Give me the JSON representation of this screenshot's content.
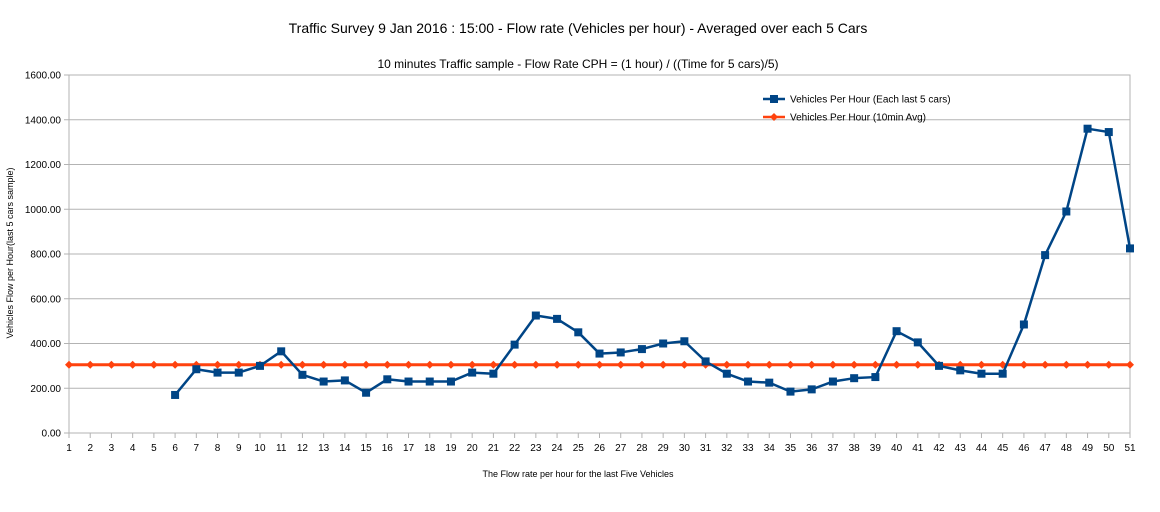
{
  "chart_data": {
    "type": "line",
    "title": "Traffic Survey 9 Jan 2016 : 15:00 - Flow rate (Vehicles per hour) - Averaged over each 5 Cars",
    "subtitle": "10 minutes Traffic sample - Flow Rate CPH = (1 hour) / ((Time for 5 cars)/5)",
    "xlabel": "The Flow rate per hour for the last Five Vehicles",
    "ylabel": "Vehicles Flow per Hour(last 5 cars sample)",
    "ylim": [
      0,
      1600
    ],
    "ytick_step": 200,
    "ytick_labels": [
      "0.00",
      "200.00",
      "400.00",
      "600.00",
      "800.00",
      "1000.00",
      "1200.00",
      "1400.00",
      "1600.00"
    ],
    "grid": true,
    "legend_position": "top-right",
    "x": [
      1,
      2,
      3,
      4,
      5,
      6,
      7,
      8,
      9,
      10,
      11,
      12,
      13,
      14,
      15,
      16,
      17,
      18,
      19,
      20,
      21,
      22,
      23,
      24,
      25,
      26,
      27,
      28,
      29,
      30,
      31,
      32,
      33,
      34,
      35,
      36,
      37,
      38,
      39,
      40,
      41,
      42,
      43,
      44,
      45,
      46,
      47,
      48,
      49,
      50,
      51
    ],
    "series": [
      {
        "name": "Vehicles Per Hour (Each  last 5 cars)",
        "color": "#004586",
        "marker": "square",
        "values": [
          null,
          null,
          null,
          null,
          null,
          170,
          285,
          270,
          270,
          300,
          365,
          260,
          230,
          235,
          180,
          240,
          230,
          230,
          230,
          270,
          265,
          395,
          525,
          510,
          450,
          355,
          360,
          375,
          400,
          410,
          320,
          265,
          230,
          225,
          185,
          195,
          230,
          245,
          250,
          455,
          405,
          300,
          280,
          265,
          265,
          485,
          795,
          990,
          1360,
          1345,
          825
        ]
      },
      {
        "name": "Vehicles Per Hour (10min Avg)",
        "color": "#ff420e",
        "marker": "diamond",
        "values": [
          305,
          305,
          305,
          305,
          305,
          305,
          305,
          305,
          305,
          305,
          305,
          305,
          305,
          305,
          305,
          305,
          305,
          305,
          305,
          305,
          305,
          305,
          305,
          305,
          305,
          305,
          305,
          305,
          305,
          305,
          305,
          305,
          305,
          305,
          305,
          305,
          305,
          305,
          305,
          305,
          305,
          305,
          305,
          305,
          305,
          305,
          305,
          305,
          305,
          305,
          305
        ]
      }
    ]
  }
}
